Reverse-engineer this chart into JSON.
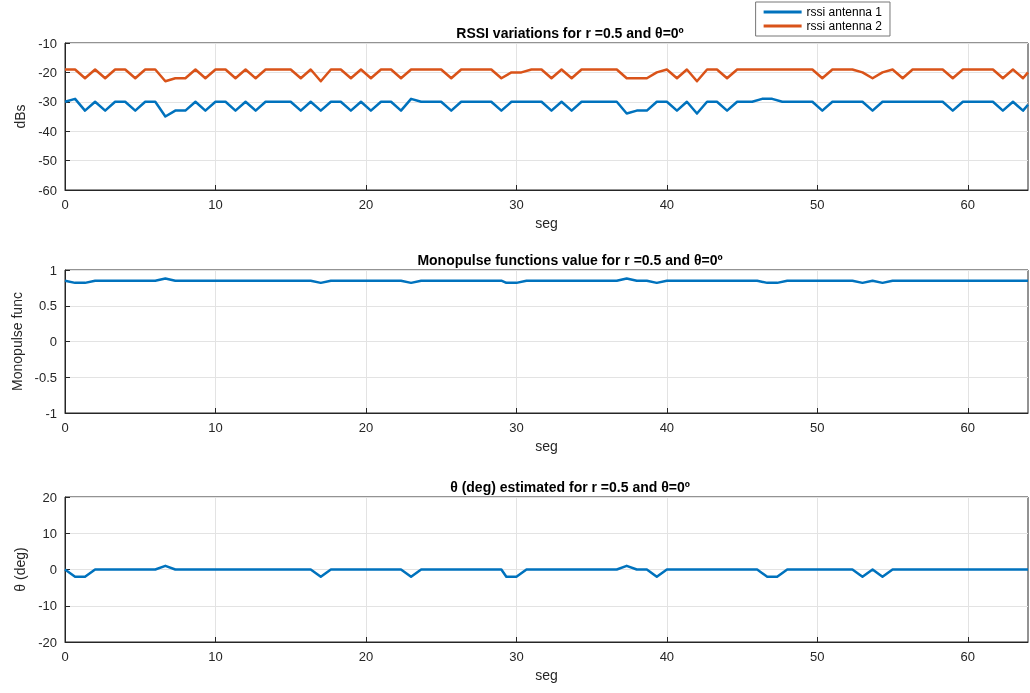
{
  "chart_data": [
    {
      "type": "line",
      "title": "RSSI variations for r =0.5 and θ=0º",
      "xlabel": "seg",
      "ylabel": "dBs",
      "xlim": [
        0,
        64
      ],
      "xticks": [
        0,
        10,
        20,
        30,
        40,
        50,
        60
      ],
      "ylim": [
        -60,
        -10
      ],
      "yticks": [
        -60,
        -50,
        -40,
        -30,
        -20,
        -10
      ],
      "grid": true,
      "legend": "top right",
      "series": [
        {
          "name": "rssi antenna 1",
          "color": "#0072bd",
          "x": [
            0,
            0.67,
            1.33,
            2,
            2.67,
            3.33,
            4,
            4.67,
            5.33,
            6,
            6.67,
            7.33,
            8,
            8.67,
            9.33,
            10,
            10.67,
            11.33,
            12,
            12.67,
            13.33,
            15,
            15.67,
            16.33,
            17,
            17.67,
            18.33,
            19,
            19.67,
            20.33,
            21,
            21.67,
            22.33,
            23,
            23.67,
            25,
            25.67,
            26.33,
            28.33,
            29,
            29.67,
            31.67,
            32.33,
            33,
            33.67,
            34.33,
            36.67,
            37.33,
            38,
            38.67,
            39.33,
            40,
            40.67,
            41.33,
            42,
            42.67,
            43.33,
            44,
            44.67,
            45.67,
            46.33,
            47,
            47.67,
            49.67,
            50.33,
            51,
            53,
            53.67,
            54.33,
            58.33,
            59,
            59.67,
            61.67,
            62.33,
            63,
            63.67,
            64
          ],
          "values": [
            -30,
            -29,
            -33,
            -30,
            -33,
            -30,
            -30,
            -33,
            -30,
            -30,
            -35,
            -33,
            -33,
            -30,
            -33,
            -30,
            -30,
            -33,
            -30,
            -33,
            -30,
            -30,
            -33,
            -30,
            -33,
            -30,
            -30,
            -33,
            -30,
            -33,
            -30,
            -30,
            -33,
            -29,
            -30,
            -30,
            -33,
            -30,
            -30,
            -33,
            -30,
            -30,
            -33,
            -30,
            -33,
            -30,
            -30,
            -34,
            -33,
            -33,
            -30,
            -30,
            -33,
            -30,
            -34,
            -30,
            -30,
            -33,
            -30,
            -30,
            -29,
            -29,
            -30,
            -30,
            -33,
            -30,
            -30,
            -33,
            -30,
            -30,
            -33,
            -30,
            -30,
            -33,
            -30,
            -33,
            -31
          ]
        },
        {
          "name": "rssi antenna 2",
          "color": "#d95319",
          "x": [
            0,
            0.67,
            1.33,
            2,
            2.67,
            3.33,
            4,
            4.67,
            5.33,
            6,
            6.67,
            7.33,
            8,
            8.67,
            9.33,
            10,
            10.67,
            11.33,
            12,
            12.67,
            13.33,
            15,
            15.67,
            16.33,
            17,
            17.67,
            18.33,
            19,
            19.67,
            20.33,
            21,
            21.67,
            22.33,
            23,
            25,
            25.67,
            26.33,
            28.33,
            29,
            29.67,
            30.33,
            31,
            31.67,
            32.33,
            33,
            33.67,
            34.33,
            36.67,
            37.33,
            38.67,
            39.33,
            40,
            40.67,
            41.33,
            42,
            42.67,
            43.33,
            44,
            44.67,
            49.67,
            50.33,
            51,
            52.33,
            53,
            53.67,
            54.33,
            55,
            55.67,
            56.33,
            58.33,
            59,
            59.67,
            61.67,
            62.33,
            63,
            63.67,
            64
          ],
          "values": [
            -19,
            -19,
            -22,
            -19,
            -22,
            -19,
            -19,
            -22,
            -19,
            -19,
            -23,
            -22,
            -22,
            -19,
            -22,
            -19,
            -19,
            -22,
            -19,
            -22,
            -19,
            -19,
            -22,
            -19,
            -23,
            -19,
            -19,
            -22,
            -19,
            -22,
            -19,
            -19,
            -22,
            -19,
            -19,
            -22,
            -19,
            -19,
            -22,
            -20,
            -20,
            -19,
            -19,
            -22,
            -19,
            -22,
            -19,
            -19,
            -22,
            -22,
            -20,
            -19,
            -22,
            -19,
            -23,
            -19,
            -19,
            -22,
            -19,
            -19,
            -22,
            -19,
            -19,
            -20,
            -22,
            -20,
            -19,
            -22,
            -19,
            -19,
            -22,
            -19,
            -19,
            -22,
            -19,
            -22,
            -20
          ]
        }
      ]
    },
    {
      "type": "line",
      "title": "Monopulse functions value for r =0.5 and θ=0º",
      "xlabel": "seg",
      "ylabel": "Monopulse func",
      "xlim": [
        0,
        64
      ],
      "xticks": [
        0,
        10,
        20,
        30,
        40,
        50,
        60
      ],
      "ylim": [
        -1,
        1
      ],
      "yticks": [
        -1,
        -0.5,
        0,
        0.5,
        1
      ],
      "grid": true,
      "series": [
        {
          "color": "#0072bd",
          "x": [
            0,
            0.67,
            1.33,
            2,
            6,
            6.67,
            7.33,
            16.33,
            17,
            17.67,
            22.33,
            23,
            23.67,
            29,
            29.33,
            30,
            30.67,
            36.67,
            37.33,
            38,
            38.67,
            39.33,
            40,
            46,
            46.67,
            47.33,
            48,
            52.33,
            53,
            53.67,
            54.33,
            55,
            64
          ],
          "values": [
            0.85,
            0.82,
            0.82,
            0.85,
            0.85,
            0.88,
            0.85,
            0.85,
            0.82,
            0.85,
            0.85,
            0.82,
            0.85,
            0.85,
            0.82,
            0.82,
            0.85,
            0.85,
            0.88,
            0.85,
            0.85,
            0.82,
            0.85,
            0.85,
            0.82,
            0.82,
            0.85,
            0.85,
            0.82,
            0.85,
            0.82,
            0.85,
            0.85
          ]
        }
      ]
    },
    {
      "type": "line",
      "title": "θ (deg) estimated for r =0.5 and θ=0º",
      "xlabel": "seg",
      "ylabel": "θ (deg)",
      "xlim": [
        0,
        64
      ],
      "xticks": [
        0,
        10,
        20,
        30,
        40,
        50,
        60
      ],
      "ylim": [
        -20,
        20
      ],
      "yticks": [
        -20,
        -10,
        0,
        10,
        20
      ],
      "grid": true,
      "series": [
        {
          "color": "#0072bd",
          "x": [
            0,
            0.67,
            1.33,
            2,
            6,
            6.67,
            7.33,
            16.33,
            17,
            17.67,
            22.33,
            23,
            23.67,
            29,
            29.33,
            30,
            30.67,
            36.67,
            37.33,
            38,
            38.67,
            39.33,
            40,
            46,
            46.67,
            47.33,
            48,
            52.33,
            53,
            53.67,
            54.33,
            55,
            64
          ],
          "values": [
            0,
            -2,
            -2,
            0,
            0,
            1,
            0,
            0,
            -2,
            0,
            0,
            -2,
            0,
            0,
            -2,
            -2,
            0,
            0,
            1,
            0,
            0,
            -2,
            0,
            0,
            -2,
            -2,
            0,
            0,
            -2,
            0,
            -2,
            0,
            0
          ]
        }
      ]
    }
  ]
}
